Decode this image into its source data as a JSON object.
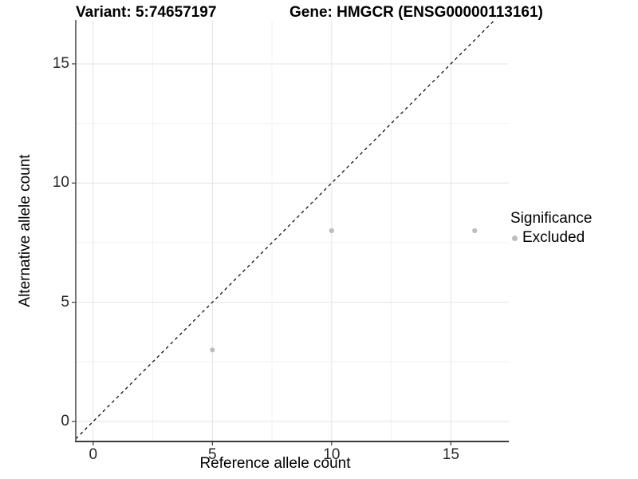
{
  "chart_data": {
    "type": "scatter",
    "title_left": "Variant: 5:74657197",
    "title_right": "Gene: HMGCR (ENSG00000113161)",
    "xlabel": "Reference allele count",
    "ylabel": "Alternative allele count",
    "xlim": [
      -0.73,
      17.43
    ],
    "ylim": [
      -0.84,
      16.84
    ],
    "x_major_ticks": [
      0,
      5,
      10,
      15
    ],
    "y_major_ticks": [
      0,
      5,
      10,
      15
    ],
    "x_minor_ticks": [
      2.5,
      7.5,
      12.5
    ],
    "y_minor_ticks": [
      2.5,
      7.5,
      12.5
    ],
    "grid": "major+minor",
    "series": [
      {
        "name": "Excluded",
        "color": "#bdbdbd",
        "points": [
          {
            "x": 5,
            "y": 3
          },
          {
            "x": 10,
            "y": 8
          },
          {
            "x": 16,
            "y": 8
          }
        ]
      }
    ],
    "reference_line": {
      "kind": "identity",
      "slope": 1,
      "intercept": 0,
      "style": "dashed",
      "color": "#000000"
    },
    "legend": {
      "title": "Significance",
      "position": "right",
      "items": [
        {
          "label": "Excluded",
          "color": "#bdbdbd"
        }
      ]
    },
    "colors": {
      "background": "#ffffff",
      "major_grid": "#e4e4e4",
      "minor_grid": "#f1f1f1",
      "axis_line": "#3a3a3a",
      "tick_text": "#262626"
    }
  }
}
